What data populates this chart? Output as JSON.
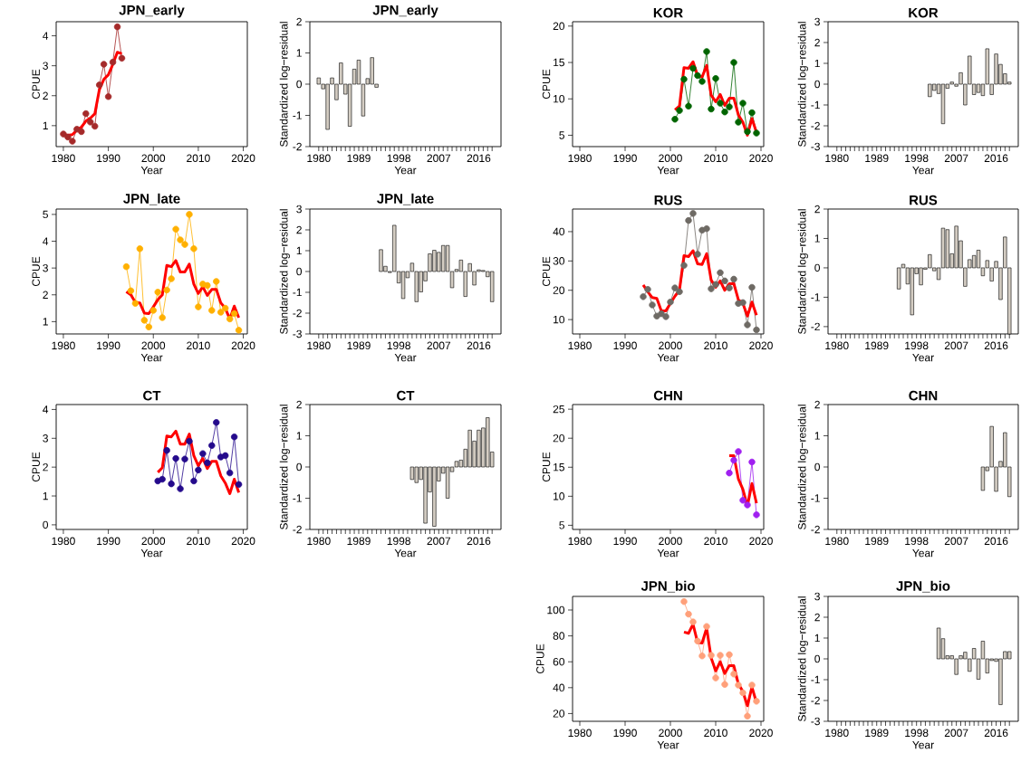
{
  "chart_data": [
    {
      "type": "line",
      "title": "JPN_early",
      "xlabel": "Year",
      "ylabel": "CPUE",
      "x": [
        1980,
        1981,
        1982,
        1983,
        1984,
        1985,
        1986,
        1987,
        1988,
        1989,
        1990,
        1991,
        1992,
        1993
      ],
      "xlim": [
        1978.4,
        2020.9
      ],
      "ylim": [
        0.3,
        4.47
      ],
      "xticks": [
        1980,
        1990,
        2000,
        2010,
        2020
      ],
      "yticks": [
        1,
        2,
        3,
        4
      ],
      "series": [
        {
          "marker": "circle",
          "color": "#a52a2a",
          "values": [
            0.72,
            0.62,
            0.48,
            0.88,
            0.8,
            1.4,
            1.12,
            0.98,
            2.36,
            3.05,
            1.97,
            3.12,
            4.3,
            3.25
          ]
        },
        {
          "marker": "none",
          "color": "#ff0000",
          "values": [
            0.7,
            0.68,
            0.7,
            0.85,
            0.95,
            1.15,
            1.25,
            1.4,
            2.2,
            2.55,
            2.7,
            3.05,
            3.45,
            3.4
          ]
        }
      ]
    },
    {
      "type": "bar",
      "title": "JPN_early",
      "xlabel": "Year",
      "ylabel": "Standardized log−residual",
      "x": [
        1980,
        1981,
        1982,
        1983,
        1984,
        1985,
        1986,
        1987,
        1988,
        1989,
        1990,
        1991,
        1992,
        1993
      ],
      "xlim": [
        1978,
        2021
      ],
      "ylim": [
        -2,
        2
      ],
      "xticks": [
        1980,
        {
          "value": 1981,
          "label": null
        },
        {
          "value": 1982,
          "label": null
        },
        {
          "value": 1983,
          "label": null
        },
        {
          "value": 1984,
          "label": null
        },
        {
          "value": 1985,
          "label": null
        },
        {
          "value": 1986,
          "label": null
        },
        {
          "value": 1987,
          "label": null
        },
        {
          "value": 1988,
          "label": null
        },
        1989,
        {
          "value": 1990,
          "label": null
        },
        {
          "value": 1991,
          "label": null
        },
        {
          "value": 1992,
          "label": null
        },
        {
          "value": 1993,
          "label": null
        },
        {
          "value": 1994,
          "label": null
        },
        {
          "value": 1995,
          "label": null
        },
        {
          "value": 1996,
          "label": null
        },
        {
          "value": 1997,
          "label": null
        },
        1998,
        {
          "value": 1999,
          "label": null
        },
        {
          "value": 2000,
          "label": null
        },
        {
          "value": 2001,
          "label": null
        },
        {
          "value": 2002,
          "label": null
        },
        {
          "value": 2003,
          "label": null
        },
        {
          "value": 2004,
          "label": null
        },
        {
          "value": 2005,
          "label": null
        },
        {
          "value": 2006,
          "label": null
        },
        2007,
        {
          "value": 2008,
          "label": null
        },
        {
          "value": 2009,
          "label": null
        },
        {
          "value": 2010,
          "label": null
        },
        {
          "value": 2011,
          "label": null
        },
        {
          "value": 2012,
          "label": null
        },
        {
          "value": 2013,
          "label": null
        },
        {
          "value": 2014,
          "label": null
        },
        {
          "value": 2015,
          "label": null
        },
        2016,
        {
          "value": 2017,
          "label": null
        },
        {
          "value": 2018,
          "label": null
        },
        {
          "value": 2019,
          "label": null
        }
      ],
      "yticks": [
        -2,
        -1,
        0,
        1,
        2
      ],
      "series": [
        {
          "color": "#d4cdc3",
          "values": [
            0.2,
            -0.15,
            -1.45,
            0.2,
            -0.5,
            0.68,
            -0.32,
            -1.35,
            0.48,
            0.77,
            -1.02,
            0.18,
            0.85,
            -0.1
          ]
        }
      ]
    },
    {
      "type": "line",
      "title": "KOR",
      "xlabel": "Year",
      "ylabel": "CPUE",
      "x": [
        2001,
        2002,
        2003,
        2004,
        2005,
        2006,
        2007,
        2008,
        2009,
        2010,
        2011,
        2012,
        2013,
        2014,
        2015,
        2016,
        2017,
        2018,
        2019
      ],
      "xlim": [
        1978.4,
        2020.6
      ],
      "ylim": [
        3.44,
        20.6
      ],
      "xticks": [
        1980,
        1990,
        2000,
        2010,
        2020
      ],
      "yticks": [
        5,
        10,
        15,
        20
      ],
      "series": [
        {
          "marker": "circle",
          "color": "#006400",
          "values": [
            7.2,
            8.4,
            12.7,
            9.0,
            14.2,
            13.2,
            12.4,
            16.5,
            8.6,
            12.8,
            9.4,
            8.2,
            8.9,
            15.0,
            6.8,
            9.4,
            5.5,
            8.1,
            5.3
          ]
        },
        {
          "marker": "none",
          "color": "#ff0000",
          "values": [
            8.5,
            9.0,
            14.3,
            14.2,
            15.1,
            13.2,
            13.0,
            14.6,
            10.5,
            9.6,
            10.6,
            9.1,
            10.1,
            10.1,
            7.8,
            6.8,
            5.0,
            7.3,
            5.4
          ]
        }
      ]
    },
    {
      "type": "bar",
      "title": "KOR",
      "xlabel": "Year",
      "ylabel": "Standardized log−residual",
      "x": [
        2001,
        2002,
        2003,
        2004,
        2005,
        2006,
        2007,
        2008,
        2009,
        2010,
        2011,
        2012,
        2013,
        2014,
        2015,
        2016,
        2017,
        2018,
        2019
      ],
      "xlim": [
        1978,
        2021
      ],
      "ylim": [
        -3,
        3
      ],
      "xticks": [
        1980,
        {
          "value": 1981,
          "label": null
        },
        {
          "value": 1982,
          "label": null
        },
        {
          "value": 1983,
          "label": null
        },
        {
          "value": 1984,
          "label": null
        },
        {
          "value": 1985,
          "label": null
        },
        {
          "value": 1986,
          "label": null
        },
        {
          "value": 1987,
          "label": null
        },
        {
          "value": 1988,
          "label": null
        },
        1989,
        {
          "value": 1990,
          "label": null
        },
        {
          "value": 1991,
          "label": null
        },
        {
          "value": 1992,
          "label": null
        },
        {
          "value": 1993,
          "label": null
        },
        {
          "value": 1994,
          "label": null
        },
        {
          "value": 1995,
          "label": null
        },
        {
          "value": 1996,
          "label": null
        },
        {
          "value": 1997,
          "label": null
        },
        1998,
        {
          "value": 1999,
          "label": null
        },
        {
          "value": 2000,
          "label": null
        },
        {
          "value": 2001,
          "label": null
        },
        {
          "value": 2002,
          "label": null
        },
        {
          "value": 2003,
          "label": null
        },
        {
          "value": 2004,
          "label": null
        },
        {
          "value": 2005,
          "label": null
        },
        {
          "value": 2006,
          "label": null
        },
        2007,
        {
          "value": 2008,
          "label": null
        },
        {
          "value": 2009,
          "label": null
        },
        {
          "value": 2010,
          "label": null
        },
        {
          "value": 2011,
          "label": null
        },
        {
          "value": 2012,
          "label": null
        },
        {
          "value": 2013,
          "label": null
        },
        {
          "value": 2014,
          "label": null
        },
        {
          "value": 2015,
          "label": null
        },
        2016,
        {
          "value": 2017,
          "label": null
        },
        {
          "value": 2018,
          "label": null
        },
        {
          "value": 2019,
          "label": null
        }
      ],
      "yticks": [
        -3,
        -2,
        -1,
        0,
        1,
        2,
        3
      ],
      "series": [
        {
          "color": "#d4cdc3",
          "values": [
            -0.6,
            -0.3,
            -0.45,
            -1.9,
            -0.2,
            0.1,
            -0.1,
            0.55,
            -1.0,
            1.35,
            -0.5,
            -0.4,
            -0.55,
            1.7,
            -0.5,
            1.45,
            0.95,
            0.5,
            0.1
          ]
        }
      ]
    },
    {
      "type": "line",
      "title": "JPN_late",
      "xlabel": "Year",
      "ylabel": "CPUE",
      "x": [
        1994,
        1995,
        1996,
        1997,
        1998,
        1999,
        2000,
        2001,
        2002,
        2003,
        2004,
        2005,
        2006,
        2007,
        2008,
        2009,
        2010,
        2011,
        2012,
        2013,
        2014,
        2015,
        2016,
        2017,
        2018,
        2019
      ],
      "xlim": [
        1978.4,
        2020.9
      ],
      "ylim": [
        0.54,
        5.2
      ],
      "xticks": [
        1980,
        1990,
        2000,
        2010,
        2020
      ],
      "yticks": [
        1,
        2,
        3,
        4,
        5
      ],
      "series": [
        {
          "marker": "circle",
          "color": "#ffb000",
          "values": [
            3.05,
            2.15,
            1.68,
            3.72,
            1.05,
            0.8,
            1.42,
            2.1,
            1.15,
            2.18,
            2.6,
            4.45,
            4.05,
            3.88,
            5.0,
            3.72,
            1.55,
            2.4,
            2.35,
            1.42,
            2.5,
            1.35,
            1.5,
            1.1,
            1.3,
            0.68
          ]
        },
        {
          "marker": "none",
          "color": "#ff0000",
          "values": [
            2.12,
            2.0,
            1.72,
            1.7,
            1.32,
            1.3,
            1.55,
            1.82,
            2.0,
            3.1,
            3.05,
            3.28,
            2.85,
            2.85,
            3.15,
            2.4,
            2.05,
            2.3,
            1.98,
            2.2,
            2.2,
            1.7,
            1.5,
            1.1,
            1.58,
            1.15
          ]
        }
      ]
    },
    {
      "type": "bar",
      "title": "JPN_late",
      "xlabel": "Year",
      "ylabel": "Standardized log−residual",
      "x": [
        1994,
        1995,
        1996,
        1997,
        1998,
        1999,
        2000,
        2001,
        2002,
        2003,
        2004,
        2005,
        2006,
        2007,
        2008,
        2009,
        2010,
        2011,
        2012,
        2013,
        2014,
        2015,
        2016,
        2017,
        2018,
        2019
      ],
      "xlim": [
        1978,
        2021
      ],
      "ylim": [
        -3,
        3
      ],
      "xticks": [
        1980,
        {
          "value": 1981,
          "label": null
        },
        {
          "value": 1982,
          "label": null
        },
        {
          "value": 1983,
          "label": null
        },
        {
          "value": 1984,
          "label": null
        },
        {
          "value": 1985,
          "label": null
        },
        {
          "value": 1986,
          "label": null
        },
        {
          "value": 1987,
          "label": null
        },
        {
          "value": 1988,
          "label": null
        },
        1989,
        {
          "value": 1990,
          "label": null
        },
        {
          "value": 1991,
          "label": null
        },
        {
          "value": 1992,
          "label": null
        },
        {
          "value": 1993,
          "label": null
        },
        {
          "value": 1994,
          "label": null
        },
        {
          "value": 1995,
          "label": null
        },
        {
          "value": 1996,
          "label": null
        },
        {
          "value": 1997,
          "label": null
        },
        1998,
        {
          "value": 1999,
          "label": null
        },
        {
          "value": 2000,
          "label": null
        },
        {
          "value": 2001,
          "label": null
        },
        {
          "value": 2002,
          "label": null
        },
        {
          "value": 2003,
          "label": null
        },
        {
          "value": 2004,
          "label": null
        },
        {
          "value": 2005,
          "label": null
        },
        {
          "value": 2006,
          "label": null
        },
        2007,
        {
          "value": 2008,
          "label": null
        },
        {
          "value": 2009,
          "label": null
        },
        {
          "value": 2010,
          "label": null
        },
        {
          "value": 2011,
          "label": null
        },
        {
          "value": 2012,
          "label": null
        },
        {
          "value": 2013,
          "label": null
        },
        {
          "value": 2014,
          "label": null
        },
        {
          "value": 2015,
          "label": null
        },
        2016,
        {
          "value": 2017,
          "label": null
        },
        {
          "value": 2018,
          "label": null
        },
        {
          "value": 2019,
          "label": null
        }
      ],
      "yticks": [
        -3,
        -2,
        -1,
        0,
        1,
        2,
        3
      ],
      "series": [
        {
          "color": "#d4cdc3",
          "values": [
            1.05,
            0.25,
            -0.05,
            2.22,
            -0.55,
            -1.3,
            -0.3,
            0.4,
            -1.45,
            -0.98,
            -0.45,
            0.85,
            1.02,
            0.92,
            1.25,
            1.25,
            -0.78,
            0.1,
            0.55,
            -1.2,
            0.38,
            -0.65,
            0.08,
            0.05,
            -0.25,
            -1.45
          ]
        }
      ]
    },
    {
      "type": "line",
      "title": "RUS",
      "xlabel": "Year",
      "ylabel": "CPUE",
      "x": [
        1994,
        1995,
        1996,
        1997,
        1998,
        1999,
        2000,
        2001,
        2002,
        2003,
        2004,
        2005,
        2006,
        2007,
        2008,
        2009,
        2010,
        2011,
        2012,
        2013,
        2014,
        2015,
        2016,
        2017,
        2018,
        2019
      ],
      "xlim": [
        1978.4,
        2020.6
      ],
      "ylim": [
        5.1,
        47.7
      ],
      "xticks": [
        1980,
        1990,
        2000,
        2010,
        2020
      ],
      "yticks": [
        10,
        20,
        30,
        40
      ],
      "series": [
        {
          "marker": "circle",
          "color": "#6e6a64",
          "values": [
            17.8,
            20.3,
            15.0,
            11.2,
            12.0,
            11.0,
            16.0,
            20.8,
            19.5,
            28.5,
            43.8,
            46.2,
            32.3,
            40.5,
            41.0,
            20.5,
            22.0,
            26.0,
            23.2,
            20.8,
            23.8,
            15.5,
            15.8,
            8.2,
            21.0,
            6.5
          ]
        },
        {
          "marker": "none",
          "color": "#ff0000",
          "values": [
            21.8,
            19.5,
            17.5,
            17.2,
            13.0,
            13.0,
            15.5,
            18.0,
            20.0,
            31.8,
            31.5,
            33.5,
            29.0,
            28.8,
            32.5,
            23.5,
            21.0,
            23.2,
            20.0,
            22.2,
            22.3,
            16.8,
            15.5,
            11.2,
            16.0,
            11.5
          ]
        }
      ]
    },
    {
      "type": "bar",
      "title": "RUS",
      "xlabel": "Year",
      "ylabel": "Standardized log−residual",
      "x": [
        1994,
        1995,
        1996,
        1997,
        1998,
        1999,
        2000,
        2001,
        2002,
        2003,
        2004,
        2005,
        2006,
        2007,
        2008,
        2009,
        2010,
        2011,
        2012,
        2013,
        2014,
        2015,
        2016,
        2017,
        2018,
        2019
      ],
      "xlim": [
        1978,
        2021
      ],
      "ylim": [
        -2.25,
        2
      ],
      "xticks": [
        1980,
        {
          "value": 1981,
          "label": null
        },
        {
          "value": 1982,
          "label": null
        },
        {
          "value": 1983,
          "label": null
        },
        {
          "value": 1984,
          "label": null
        },
        {
          "value": 1985,
          "label": null
        },
        {
          "value": 1986,
          "label": null
        },
        {
          "value": 1987,
          "label": null
        },
        {
          "value": 1988,
          "label": null
        },
        1989,
        {
          "value": 1990,
          "label": null
        },
        {
          "value": 1991,
          "label": null
        },
        {
          "value": 1992,
          "label": null
        },
        {
          "value": 1993,
          "label": null
        },
        {
          "value": 1994,
          "label": null
        },
        {
          "value": 1995,
          "label": null
        },
        {
          "value": 1996,
          "label": null
        },
        {
          "value": 1997,
          "label": null
        },
        1998,
        {
          "value": 1999,
          "label": null
        },
        {
          "value": 2000,
          "label": null
        },
        {
          "value": 2001,
          "label": null
        },
        {
          "value": 2002,
          "label": null
        },
        {
          "value": 2003,
          "label": null
        },
        {
          "value": 2004,
          "label": null
        },
        {
          "value": 2005,
          "label": null
        },
        {
          "value": 2006,
          "label": null
        },
        2007,
        {
          "value": 2008,
          "label": null
        },
        {
          "value": 2009,
          "label": null
        },
        {
          "value": 2010,
          "label": null
        },
        {
          "value": 2011,
          "label": null
        },
        {
          "value": 2012,
          "label": null
        },
        {
          "value": 2013,
          "label": null
        },
        {
          "value": 2014,
          "label": null
        },
        {
          "value": 2015,
          "label": null
        },
        2016,
        {
          "value": 2017,
          "label": null
        },
        {
          "value": 2018,
          "label": null
        },
        {
          "value": 2019,
          "label": null
        }
      ],
      "yticks": [
        -2,
        -1,
        0,
        1,
        2
      ],
      "series": [
        {
          "color": "#d4cdc3",
          "values": [
            -0.72,
            0.12,
            -0.55,
            -1.6,
            -0.2,
            -0.58,
            -0.05,
            0.45,
            -0.1,
            -0.4,
            1.35,
            1.3,
            0.48,
            1.42,
            0.92,
            -0.63,
            0.28,
            0.42,
            0.6,
            -0.27,
            0.25,
            -0.45,
            0.22,
            -1.08,
            1.05,
            -2.25
          ]
        }
      ]
    },
    {
      "type": "line",
      "title": "CT",
      "xlabel": "Year",
      "ylabel": "CPUE",
      "x": [
        2001,
        2002,
        2003,
        2004,
        2005,
        2006,
        2007,
        2008,
        2009,
        2010,
        2011,
        2012,
        2013,
        2014,
        2015,
        2016,
        2017,
        2018,
        2019
      ],
      "xlim": [
        1978.4,
        2020.9
      ],
      "ylim": [
        -0.16,
        4.17
      ],
      "xticks": [
        1980,
        1990,
        2000,
        2010,
        2020
      ],
      "yticks": [
        0,
        1,
        2,
        3,
        4
      ],
      "series": [
        {
          "marker": "circle",
          "color": "#240a8c",
          "values": [
            1.52,
            1.58,
            2.58,
            1.42,
            2.3,
            1.25,
            2.28,
            2.9,
            1.52,
            1.9,
            2.47,
            2.15,
            2.75,
            3.55,
            2.35,
            2.4,
            1.8,
            3.05,
            1.4
          ]
        },
        {
          "marker": "none",
          "color": "#ff0000",
          "values": [
            1.82,
            1.98,
            3.08,
            3.05,
            3.25,
            2.8,
            2.8,
            3.15,
            2.4,
            2.05,
            2.3,
            1.95,
            2.2,
            2.2,
            1.7,
            1.45,
            1.08,
            1.58,
            1.12
          ]
        }
      ]
    },
    {
      "type": "bar",
      "title": "CT",
      "xlabel": "Year",
      "ylabel": "Standardized log−residual",
      "x": [
        2001,
        2002,
        2003,
        2004,
        2005,
        2006,
        2007,
        2008,
        2009,
        2010,
        2011,
        2012,
        2013,
        2014,
        2015,
        2016,
        2017,
        2018,
        2019
      ],
      "xlim": [
        1978,
        2021
      ],
      "ylim": [
        -2,
        2
      ],
      "xticks": [
        1980,
        {
          "value": 1981,
          "label": null
        },
        {
          "value": 1982,
          "label": null
        },
        {
          "value": 1983,
          "label": null
        },
        {
          "value": 1984,
          "label": null
        },
        {
          "value": 1985,
          "label": null
        },
        {
          "value": 1986,
          "label": null
        },
        {
          "value": 1987,
          "label": null
        },
        {
          "value": 1988,
          "label": null
        },
        1989,
        {
          "value": 1990,
          "label": null
        },
        {
          "value": 1991,
          "label": null
        },
        {
          "value": 1992,
          "label": null
        },
        {
          "value": 1993,
          "label": null
        },
        {
          "value": 1994,
          "label": null
        },
        {
          "value": 1995,
          "label": null
        },
        {
          "value": 1996,
          "label": null
        },
        {
          "value": 1997,
          "label": null
        },
        1998,
        {
          "value": 1999,
          "label": null
        },
        {
          "value": 2000,
          "label": null
        },
        {
          "value": 2001,
          "label": null
        },
        {
          "value": 2002,
          "label": null
        },
        {
          "value": 2003,
          "label": null
        },
        {
          "value": 2004,
          "label": null
        },
        {
          "value": 2005,
          "label": null
        },
        {
          "value": 2006,
          "label": null
        },
        2007,
        {
          "value": 2008,
          "label": null
        },
        {
          "value": 2009,
          "label": null
        },
        {
          "value": 2010,
          "label": null
        },
        {
          "value": 2011,
          "label": null
        },
        {
          "value": 2012,
          "label": null
        },
        {
          "value": 2013,
          "label": null
        },
        {
          "value": 2014,
          "label": null
        },
        {
          "value": 2015,
          "label": null
        },
        2016,
        {
          "value": 2017,
          "label": null
        },
        {
          "value": 2018,
          "label": null
        },
        {
          "value": 2019,
          "label": null
        }
      ],
      "yticks": [
        -2,
        -1,
        0,
        1,
        2
      ],
      "series": [
        {
          "color": "#d4cdc3",
          "values": [
            -0.4,
            -0.5,
            -0.4,
            -1.8,
            -0.8,
            -1.9,
            -0.45,
            -0.2,
            -1.0,
            -0.15,
            0.18,
            0.22,
            0.57,
            1.18,
            0.83,
            1.18,
            1.25,
            1.58,
            0.48
          ]
        }
      ]
    },
    {
      "type": "line",
      "title": "CHN",
      "xlabel": "Year",
      "ylabel": "CPUE",
      "x": [
        2013,
        2014,
        2015,
        2016,
        2017,
        2018,
        2019
      ],
      "xlim": [
        1978.4,
        2020.6
      ],
      "ylim": [
        4.28,
        25.8
      ],
      "xticks": [
        1980,
        1990,
        2000,
        2010,
        2020
      ],
      "yticks": [
        5,
        10,
        15,
        20,
        25
      ],
      "series": [
        {
          "marker": "circle",
          "color": "#a020f0",
          "values": [
            14.0,
            16.2,
            17.7,
            9.3,
            8.5,
            15.9,
            6.8
          ]
        },
        {
          "marker": "none",
          "color": "#ff0000",
          "values": [
            17.0,
            17.0,
            13.0,
            11.2,
            8.3,
            12.2,
            8.8
          ]
        }
      ]
    },
    {
      "type": "bar",
      "title": "CHN",
      "xlabel": "Year",
      "ylabel": "Standardized log−residual",
      "x": [
        2013,
        2014,
        2015,
        2016,
        2017,
        2018,
        2019
      ],
      "xlim": [
        1978,
        2021
      ],
      "ylim": [
        -2,
        2
      ],
      "xticks": [
        1980,
        {
          "value": 1981,
          "label": null
        },
        {
          "value": 1982,
          "label": null
        },
        {
          "value": 1983,
          "label": null
        },
        {
          "value": 1984,
          "label": null
        },
        {
          "value": 1985,
          "label": null
        },
        {
          "value": 1986,
          "label": null
        },
        {
          "value": 1987,
          "label": null
        },
        {
          "value": 1988,
          "label": null
        },
        1989,
        {
          "value": 1990,
          "label": null
        },
        {
          "value": 1991,
          "label": null
        },
        {
          "value": 1992,
          "label": null
        },
        {
          "value": 1993,
          "label": null
        },
        {
          "value": 1994,
          "label": null
        },
        {
          "value": 1995,
          "label": null
        },
        {
          "value": 1996,
          "label": null
        },
        {
          "value": 1997,
          "label": null
        },
        1998,
        {
          "value": 1999,
          "label": null
        },
        {
          "value": 2000,
          "label": null
        },
        {
          "value": 2001,
          "label": null
        },
        {
          "value": 2002,
          "label": null
        },
        {
          "value": 2003,
          "label": null
        },
        {
          "value": 2004,
          "label": null
        },
        {
          "value": 2005,
          "label": null
        },
        {
          "value": 2006,
          "label": null
        },
        2007,
        {
          "value": 2008,
          "label": null
        },
        {
          "value": 2009,
          "label": null
        },
        {
          "value": 2010,
          "label": null
        },
        {
          "value": 2011,
          "label": null
        },
        {
          "value": 2012,
          "label": null
        },
        {
          "value": 2013,
          "label": null
        },
        {
          "value": 2014,
          "label": null
        },
        {
          "value": 2015,
          "label": null
        },
        2016,
        {
          "value": 2017,
          "label": null
        },
        {
          "value": 2018,
          "label": null
        },
        {
          "value": 2019,
          "label": null
        }
      ],
      "yticks": [
        -2,
        -1,
        0,
        1,
        2
      ],
      "series": [
        {
          "color": "#d4cdc3",
          "values": [
            -0.75,
            -0.12,
            1.3,
            -0.78,
            0.18,
            1.1,
            -0.95
          ]
        }
      ]
    },
    {
      "type": "line",
      "title": "JPN_bio",
      "xlabel": "Year",
      "ylabel": "CPUE",
      "x": [
        2003,
        2004,
        2005,
        2006,
        2007,
        2008,
        2009,
        2010,
        2011,
        2012,
        2013,
        2014,
        2015,
        2016,
        2017,
        2018,
        2019
      ],
      "xlim": [
        1978.4,
        2020.6
      ],
      "ylim": [
        14.0,
        110.5
      ],
      "xticks": [
        1980,
        1990,
        2000,
        2010,
        2020
      ],
      "yticks": [
        20,
        40,
        60,
        80,
        100
      ],
      "series": [
        {
          "marker": "circle",
          "color": "#ffa07a",
          "values": [
            106.5,
            96.8,
            90.8,
            76.0,
            64.5,
            87.3,
            65.0,
            47.5,
            65.0,
            42.5,
            65.5,
            50.5,
            42.0,
            36.0,
            18.0,
            42.0,
            29.5
          ]
        },
        {
          "marker": "none",
          "color": "#ff0000",
          "values": [
            83,
            82,
            89,
            75,
            74.5,
            86,
            63,
            53,
            60,
            51,
            57,
            57,
            43,
            37,
            26,
            40.5,
            28.5
          ]
        }
      ]
    },
    {
      "type": "bar",
      "title": "JPN_bio",
      "xlabel": "Year",
      "ylabel": "Standardized log−residual",
      "x": [
        2003,
        2004,
        2005,
        2006,
        2007,
        2008,
        2009,
        2010,
        2011,
        2012,
        2013,
        2014,
        2015,
        2016,
        2017,
        2018,
        2019
      ],
      "xlim": [
        1978,
        2021
      ],
      "ylim": [
        -3,
        3
      ],
      "xticks": [
        1980,
        {
          "value": 1981,
          "label": null
        },
        {
          "value": 1982,
          "label": null
        },
        {
          "value": 1983,
          "label": null
        },
        {
          "value": 1984,
          "label": null
        },
        {
          "value": 1985,
          "label": null
        },
        {
          "value": 1986,
          "label": null
        },
        {
          "value": 1987,
          "label": null
        },
        {
          "value": 1988,
          "label": null
        },
        1989,
        {
          "value": 1990,
          "label": null
        },
        {
          "value": 1991,
          "label": null
        },
        {
          "value": 1992,
          "label": null
        },
        {
          "value": 1993,
          "label": null
        },
        {
          "value": 1994,
          "label": null
        },
        {
          "value": 1995,
          "label": null
        },
        {
          "value": 1996,
          "label": null
        },
        {
          "value": 1997,
          "label": null
        },
        1998,
        {
          "value": 1999,
          "label": null
        },
        {
          "value": 2000,
          "label": null
        },
        {
          "value": 2001,
          "label": null
        },
        {
          "value": 2002,
          "label": null
        },
        {
          "value": 2003,
          "label": null
        },
        {
          "value": 2004,
          "label": null
        },
        {
          "value": 2005,
          "label": null
        },
        {
          "value": 2006,
          "label": null
        },
        2007,
        {
          "value": 2008,
          "label": null
        },
        {
          "value": 2009,
          "label": null
        },
        {
          "value": 2010,
          "label": null
        },
        {
          "value": 2011,
          "label": null
        },
        {
          "value": 2012,
          "label": null
        },
        {
          "value": 2013,
          "label": null
        },
        {
          "value": 2014,
          "label": null
        },
        {
          "value": 2015,
          "label": null
        },
        2016,
        {
          "value": 2017,
          "label": null
        },
        {
          "value": 2018,
          "label": null
        },
        {
          "value": 2019,
          "label": null
        }
      ],
      "yticks": [
        -3,
        -2,
        -1,
        0,
        1,
        2,
        3
      ],
      "series": [
        {
          "color": "#d4cdc3",
          "values": [
            1.48,
            0.97,
            0.15,
            0.15,
            -0.75,
            0.15,
            0.32,
            -0.6,
            0.5,
            -0.98,
            0.85,
            -0.68,
            -0.08,
            -0.12,
            -2.2,
            0.35,
            0.35
          ]
        }
      ]
    }
  ]
}
